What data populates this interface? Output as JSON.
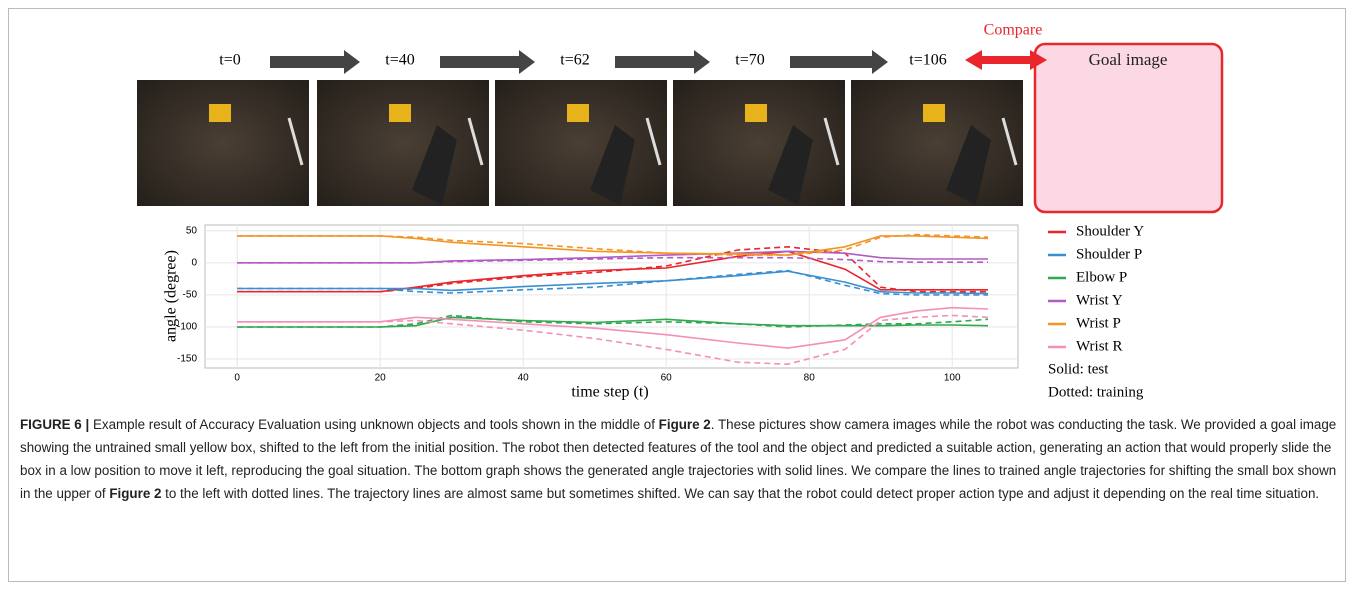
{
  "figure": {
    "frames": [
      {
        "label": "t=0"
      },
      {
        "label": "t=40"
      },
      {
        "label": "t=62"
      },
      {
        "label": "t=70"
      },
      {
        "label": "t=106"
      }
    ],
    "compare": "Compare",
    "goal_label": "Goal image"
  },
  "chart_data": {
    "type": "line",
    "xlabel": "time step (t)",
    "ylabel": "angle (degree)",
    "x": [
      0,
      10,
      20,
      25,
      30,
      40,
      50,
      60,
      70,
      77,
      85,
      90,
      95,
      100,
      105
    ],
    "xlim": [
      -4.5,
      109.2
    ],
    "xticks": [
      0,
      20,
      40,
      60,
      80,
      100
    ],
    "ylim": [
      -164,
      59
    ],
    "yticks": [
      50,
      0,
      -50,
      -100,
      -150
    ],
    "grid": true,
    "series": [
      {
        "name": "Shoulder Y",
        "color": "#e8262b",
        "values": [
          -45,
          -45,
          -45,
          -38,
          -30,
          -20,
          -12,
          -8,
          10,
          18,
          -10,
          -42,
          -42,
          -42,
          -42
        ],
        "training_values": [
          -45,
          -45,
          -45,
          -40,
          -32,
          -22,
          -15,
          -5,
          20,
          25,
          15,
          -38,
          -45,
          -45,
          -45
        ]
      },
      {
        "name": "Shoulder P",
        "color": "#3a8fd1",
        "values": [
          -40,
          -40,
          -40,
          -40,
          -43,
          -37,
          -32,
          -28,
          -20,
          -13,
          -30,
          -45,
          -47,
          -47,
          -48
        ],
        "training_values": [
          -40,
          -40,
          -40,
          -45,
          -47,
          -42,
          -38,
          -28,
          -18,
          -12,
          -35,
          -48,
          -50,
          -50,
          -50
        ]
      },
      {
        "name": "Elbow P",
        "color": "#2fa84f",
        "values": [
          -100,
          -100,
          -100,
          -98,
          -85,
          -90,
          -93,
          -88,
          -95,
          -98,
          -98,
          -98,
          -97,
          -97,
          -98
        ],
        "training_values": [
          -100,
          -100,
          -100,
          -95,
          -82,
          -92,
          -95,
          -92,
          -95,
          -100,
          -97,
          -95,
          -95,
          -92,
          -88
        ]
      },
      {
        "name": "Wrist Y",
        "color": "#b05cc0",
        "values": [
          0,
          0,
          0,
          0,
          3,
          5,
          8,
          12,
          15,
          18,
          15,
          8,
          6,
          6,
          6
        ],
        "training_values": [
          0,
          0,
          0,
          0,
          2,
          4,
          6,
          8,
          8,
          8,
          5,
          2,
          1,
          1,
          1
        ]
      },
      {
        "name": "Wrist P",
        "color": "#f39425",
        "values": [
          42,
          42,
          42,
          38,
          32,
          25,
          18,
          15,
          14,
          12,
          25,
          42,
          42,
          40,
          38
        ],
        "training_values": [
          42,
          42,
          42,
          40,
          35,
          30,
          22,
          15,
          12,
          12,
          20,
          40,
          44,
          42,
          40
        ]
      },
      {
        "name": "Wrist R",
        "color": "#f48fb8",
        "values": [
          -92,
          -92,
          -92,
          -85,
          -88,
          -95,
          -102,
          -112,
          -125,
          -133,
          -120,
          -85,
          -75,
          -70,
          -72
        ],
        "training_values": [
          -92,
          -92,
          -92,
          -90,
          -95,
          -105,
          -118,
          -135,
          -155,
          -158,
          -135,
          -90,
          -85,
          -82,
          -85
        ]
      }
    ],
    "legend_notes": [
      "Solid: test",
      "Dotted: training"
    ]
  },
  "caption": {
    "label": "FIGURE 6 |",
    "parts": [
      " Example result of Accuracy Evaluation using unknown objects and tools shown in the middle of ",
      "Figure 2",
      ". These pictures show camera images while the robot was conducting the task. We provided a goal image showing the untrained small yellow box, shifted to the left from the initial position. The robot then detected features of the tool and the object and predicted a suitable action, generating an action that would properly slide the box in a low position to move it left, reproducing the goal situation. The bottom graph shows the generated angle trajectories with solid lines. We compare the lines to trained angle trajectories for shifting the small box shown in the upper of ",
      "Figure 2",
      " to the left with dotted lines. The trajectory lines are almost same but sometimes shifted. We can say that the robot could detect proper action type and adjust it depending on the real time situation."
    ]
  }
}
